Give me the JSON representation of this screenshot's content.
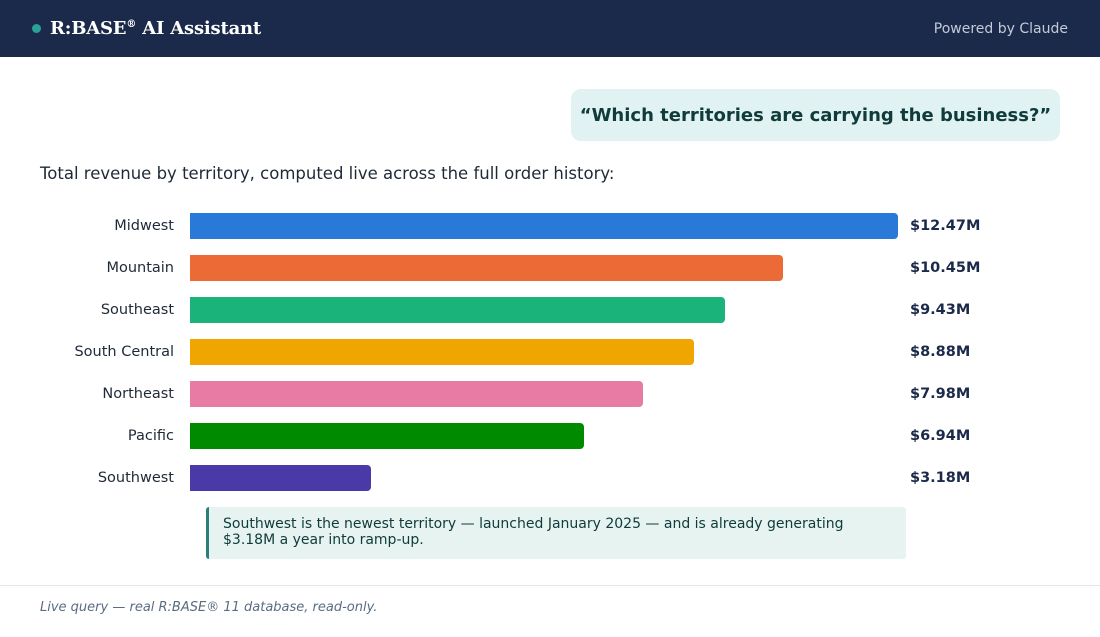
{
  "header": {
    "brand": "R:BASE",
    "brand_mark": "®",
    "brand_suffix": "AI Assistant",
    "powered_by": "Powered by Claude",
    "status_dot_color": "#2aa198"
  },
  "question": "“Which territories are carrying the business?”",
  "intro": "Total revenue by territory, computed live across the full order history:",
  "chart_data": {
    "type": "bar",
    "orientation": "horizontal",
    "categories": [
      "Midwest",
      "Mountain",
      "Southeast",
      "South Central",
      "Northeast",
      "Pacific",
      "Southwest"
    ],
    "values": [
      12.47,
      10.45,
      9.43,
      8.88,
      7.98,
      6.94,
      3.18
    ],
    "value_labels": [
      "$12.47M",
      "$10.45M",
      "$9.43M",
      "$8.88M",
      "$7.98M",
      "$6.94M",
      "$3.18M"
    ],
    "colors": [
      "#2979d9",
      "#ec6a35",
      "#1ab37a",
      "#f0a500",
      "#e87ba4",
      "#008a00",
      "#4a3aa8"
    ],
    "xlim": [
      0,
      12.47
    ],
    "grid": false,
    "legend": "none"
  },
  "callout": "Southwest is the newest territory — launched January 2025 — and is already generating $3.18M a year into ramp-up.",
  "footer": "Live query — real R:BASE® 11 database, read-only."
}
